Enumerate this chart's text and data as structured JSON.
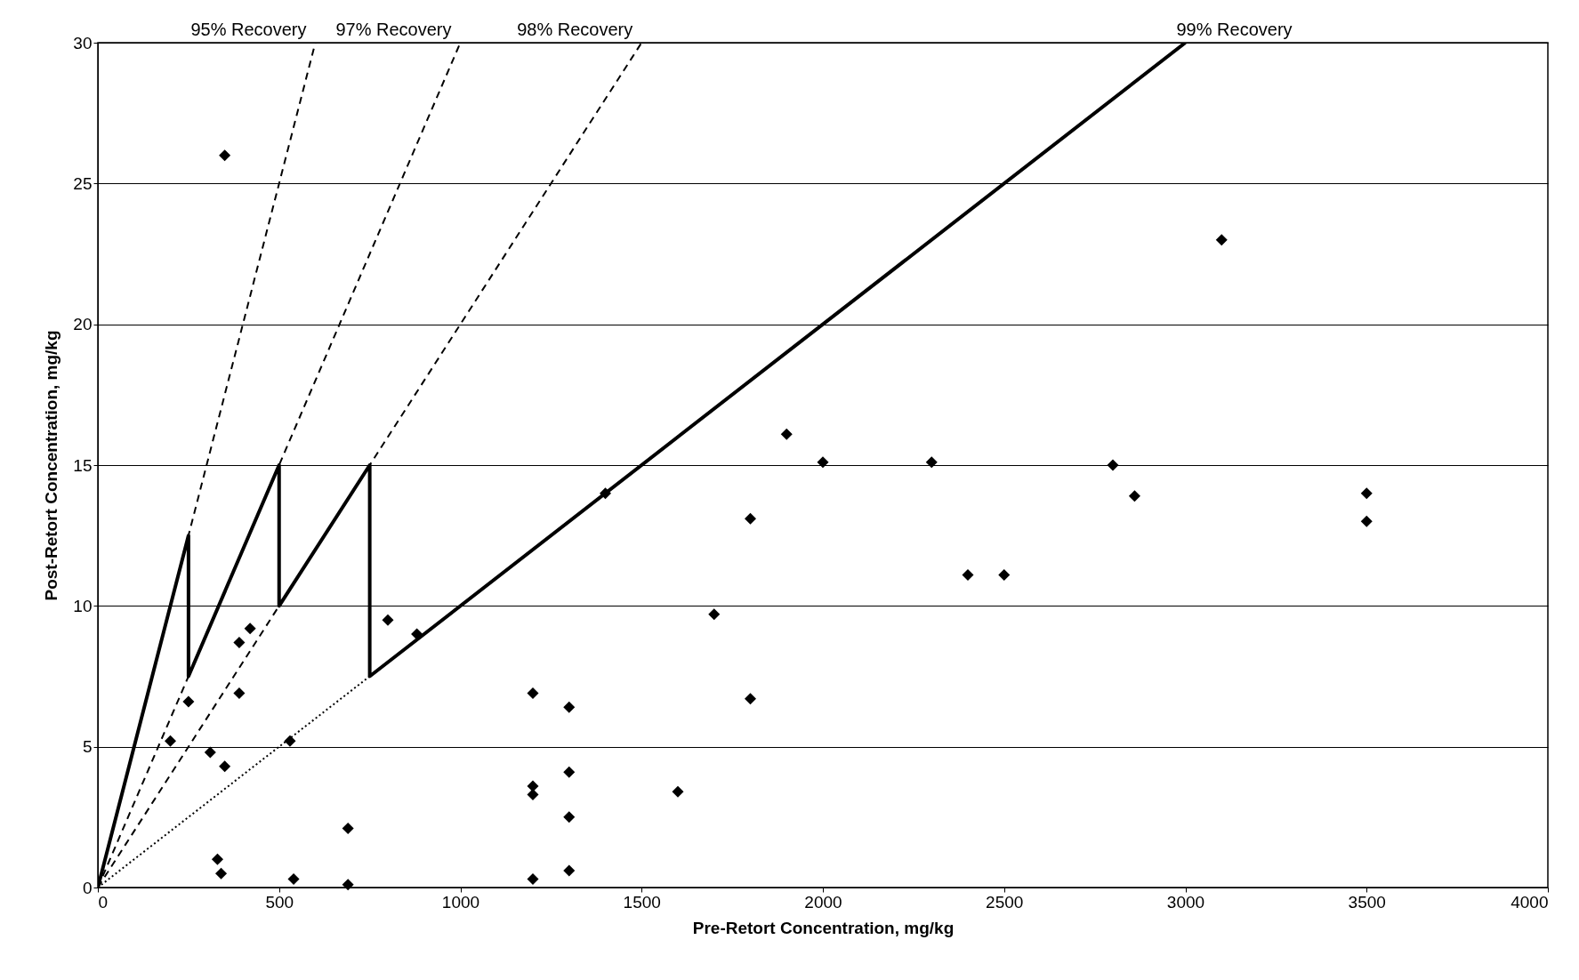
{
  "chart_data": {
    "type": "scatter",
    "xlabel": "Pre-Retort Concentration, mg/kg",
    "ylabel": "Post-Retort Concentration, mg/kg",
    "xlim": [
      0,
      4000
    ],
    "xticks": [
      0,
      500,
      1000,
      1500,
      2000,
      2500,
      3000,
      3500,
      4000
    ],
    "ylim": [
      0,
      30
    ],
    "yticks": [
      0,
      5,
      10,
      15,
      20,
      25,
      30
    ],
    "grid": "y",
    "series": [
      {
        "type": "line",
        "color": "#000000",
        "line_style": "dashed",
        "marker": "none",
        "x": [
          0,
          600
        ],
        "values": [
          0,
          30
        ]
      },
      {
        "type": "line",
        "color": "#000000",
        "line_style": "dashed",
        "marker": "none",
        "x": [
          0,
          1000
        ],
        "values": [
          0,
          30
        ]
      },
      {
        "type": "line",
        "color": "#000000",
        "line_style": "dashed",
        "marker": "none",
        "x": [
          0,
          1500
        ],
        "values": [
          0,
          30
        ]
      },
      {
        "type": "line",
        "color": "#000000",
        "line_style": "dotted",
        "marker": "none",
        "x": [
          0,
          750
        ],
        "values": [
          0,
          7.5
        ]
      },
      {
        "type": "line",
        "color": "#000000",
        "line_style": "solid",
        "marker": "none",
        "x": [
          0,
          250,
          250,
          500,
          500,
          750,
          750,
          3000
        ],
        "values": [
          0,
          12.5,
          7.5,
          15,
          10,
          15,
          7.5,
          30
        ]
      },
      {
        "color": "#000000",
        "marker": "diamond",
        "x": [
          350,
          3100,
          1900,
          2000,
          2300,
          2800,
          2860,
          3500,
          3500,
          1400,
          1800,
          2400,
          2500,
          1700,
          1800,
          800,
          880,
          420,
          390,
          390,
          250,
          200,
          310,
          350,
          530,
          1200,
          1300,
          1300,
          1200,
          1200,
          1600,
          1300,
          690,
          330,
          340,
          540,
          690,
          1200,
          1300
        ],
        "values": [
          26,
          23,
          16.1,
          15.1,
          15.1,
          15,
          13.9,
          14,
          13,
          14,
          13.1,
          11.1,
          11.1,
          9.7,
          6.7,
          9.5,
          9,
          9.2,
          8.7,
          6.9,
          6.6,
          5.2,
          4.8,
          4.3,
          5.2,
          6.9,
          6.4,
          4.1,
          3.6,
          3.3,
          3.4,
          2.5,
          2.1,
          1,
          0.5,
          0.3,
          0.1,
          0.3,
          0.6
        ]
      }
    ],
    "annotations": [
      {
        "text": "95% Recovery",
        "x": 600,
        "y": 30
      },
      {
        "text": "97% Recovery",
        "x": 1000,
        "y": 30
      },
      {
        "text": "98% Recovery",
        "x": 1500,
        "y": 30
      },
      {
        "text": "99% Recovery",
        "x": 3000,
        "y": 30
      }
    ]
  }
}
